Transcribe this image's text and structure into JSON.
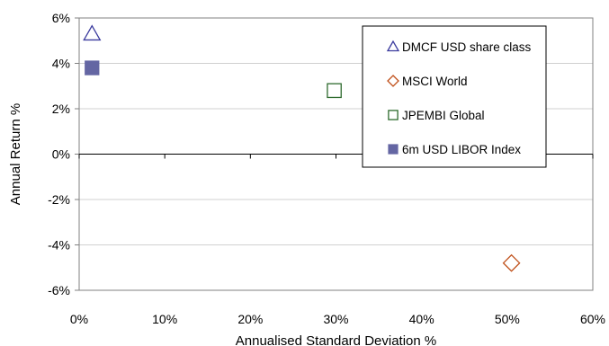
{
  "chart_data": {
    "type": "scatter",
    "xlabel": "Annualised Standard Deviation %",
    "ylabel": "Annual Return %",
    "xlim": [
      0,
      60
    ],
    "ylim": [
      -6,
      6
    ],
    "x_ticks": [
      0,
      10,
      20,
      30,
      40,
      50,
      60
    ],
    "y_ticks": [
      6,
      4,
      2,
      0,
      -2,
      -4,
      -6
    ],
    "x_tick_labels": [
      "0%",
      "10%",
      "20%",
      "30%",
      "40%",
      "50%",
      "60%"
    ],
    "y_tick_labels": [
      "6%",
      "4%",
      "2%",
      "0%",
      "-2%",
      "-4%",
      "-6%"
    ],
    "grid": "horizontal",
    "legend_position": "top-right",
    "series": [
      {
        "name": "DMCF USD share class",
        "x": 1.5,
        "y": 5.3,
        "marker": "triangle-open",
        "color": "#3b3b9e"
      },
      {
        "name": "MSCI World",
        "x": 50.5,
        "y": -4.8,
        "marker": "diamond-open",
        "color": "#c0501a"
      },
      {
        "name": "JPEMBI Global",
        "x": 29.8,
        "y": 2.8,
        "marker": "square-open",
        "color": "#2e6b2e"
      },
      {
        "name": "6m USD LIBOR Index",
        "x": 1.5,
        "y": 3.8,
        "marker": "square-filled",
        "color": "#6466a3"
      }
    ]
  }
}
